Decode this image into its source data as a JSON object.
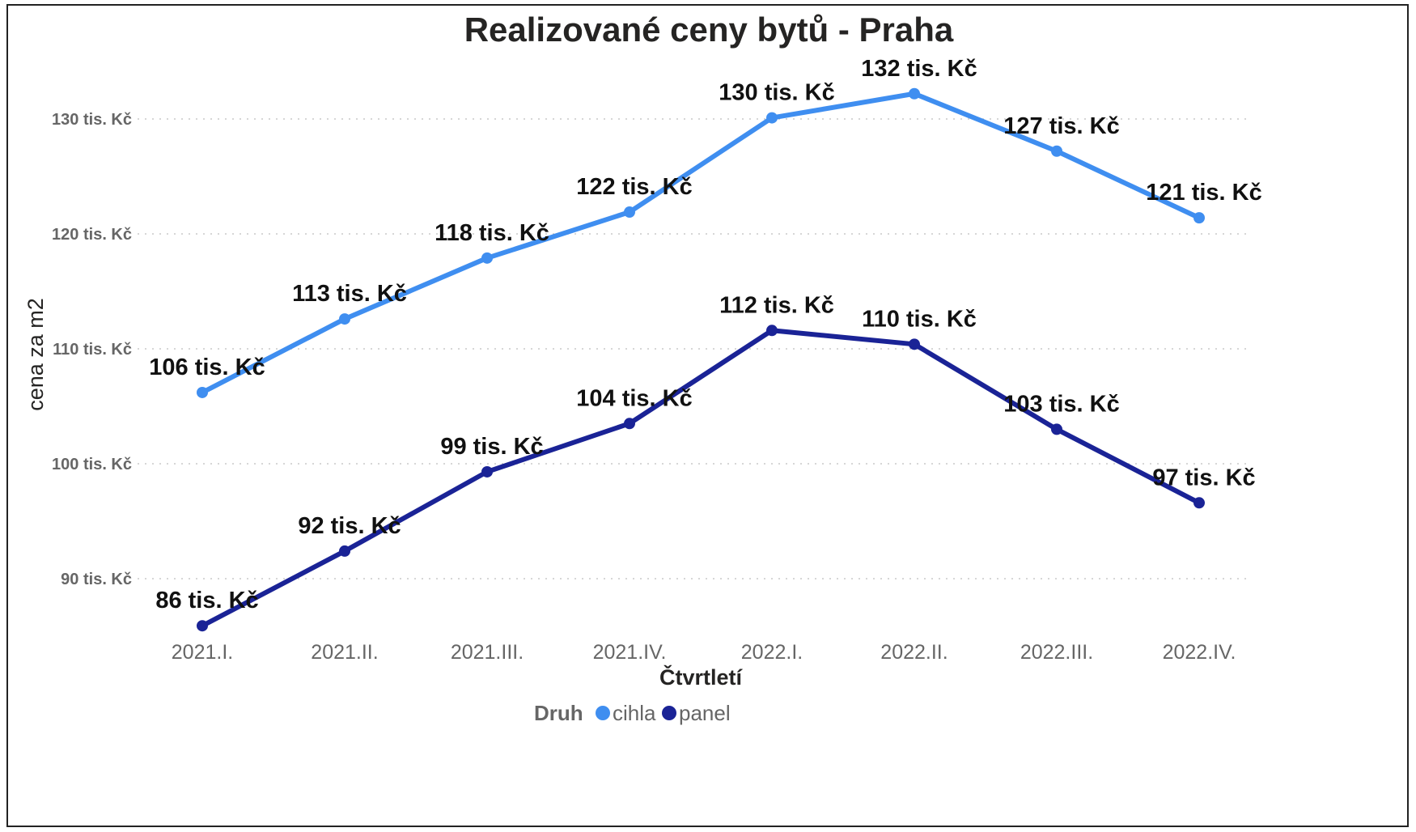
{
  "chart_data": {
    "type": "line",
    "title": "Realizované ceny bytů - Praha",
    "xlabel": "Čtvrtletí",
    "ylabel": "cena za m2",
    "categories": [
      "2021.I.",
      "2021.II.",
      "2021.III.",
      "2021.IV.",
      "2022.I.",
      "2022.II.",
      "2022.III.",
      "2022.IV."
    ],
    "y_ticks": [
      90,
      100,
      110,
      120,
      130
    ],
    "y_tick_labels": [
      "90 tis. Kč",
      "100 tis. Kč",
      "110 tis. Kč",
      "120 tis. Kč",
      "130 tis. Kč"
    ],
    "ylim": [
      84,
      136
    ],
    "grid": true,
    "legend": {
      "title": "Druh",
      "placement": "bottom-center"
    },
    "series": [
      {
        "name": "cihla",
        "color": "#3f8ef0",
        "values": [
          106.2,
          112.6,
          117.9,
          121.9,
          130.1,
          132.2,
          127.2,
          121.4
        ],
        "labels": [
          "106 tis. Kč",
          "113 tis. Kč",
          "118 tis. Kč",
          "122 tis. Kč",
          "130 tis. Kč",
          "132 tis. Kč",
          "127 tis. Kč",
          "121 tis. Kč"
        ]
      },
      {
        "name": "panel",
        "color": "#1a2396",
        "values": [
          85.9,
          92.4,
          99.3,
          103.5,
          111.6,
          110.4,
          103.0,
          96.6
        ],
        "labels": [
          "86 tis. Kč",
          "92 tis. Kč",
          "99 tis. Kč",
          "104 tis. Kč",
          "112 tis. Kč",
          "110 tis. Kč",
          "103 tis. Kč",
          "97 tis. Kč"
        ]
      }
    ]
  }
}
